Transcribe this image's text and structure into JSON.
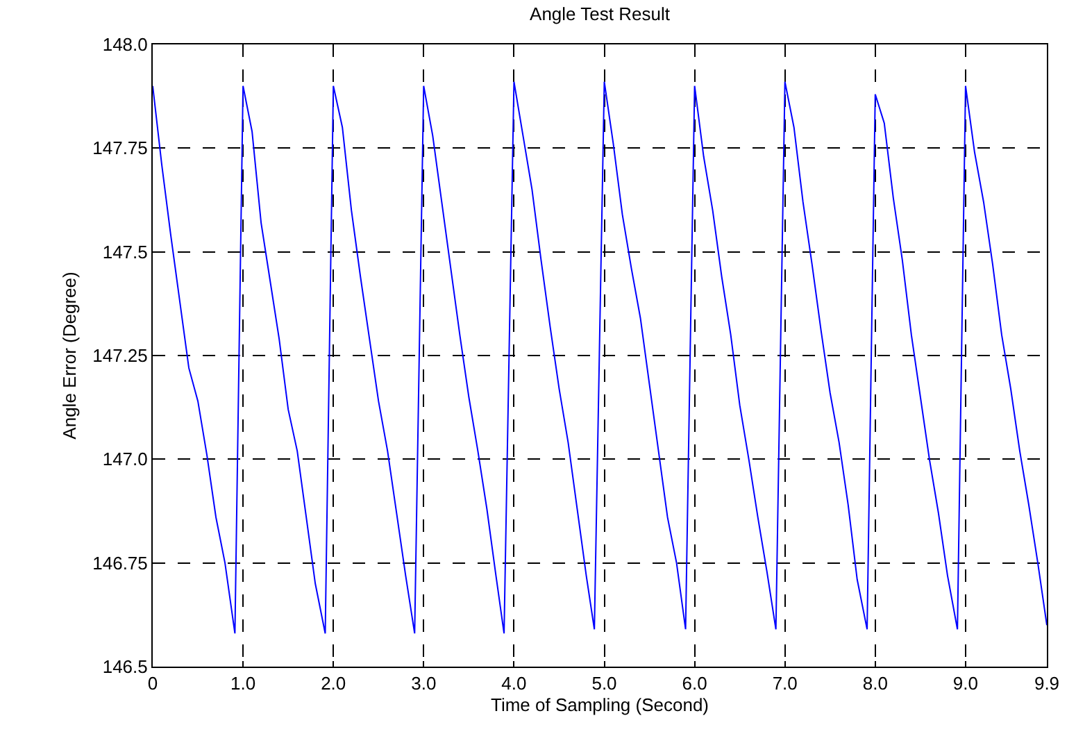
{
  "chart_data": {
    "type": "line",
    "title": "Angle Test Result",
    "xlabel": "Time of Sampling (Second)",
    "ylabel": "Angle Error (Degree)",
    "xlim": [
      0,
      9.9
    ],
    "xticks": [
      0,
      {
        "value": 1,
        "label": "1.0"
      },
      {
        "value": 2,
        "label": "2.0"
      },
      {
        "value": 3,
        "label": "3.0"
      },
      {
        "value": 4,
        "label": "4.0"
      },
      {
        "value": 5,
        "label": "5.0"
      },
      {
        "value": 6,
        "label": "6.0"
      },
      {
        "value": 7,
        "label": "7.0"
      },
      {
        "value": 8,
        "label": "8.0"
      },
      {
        "value": 9,
        "label": "9.0"
      },
      9.9
    ],
    "ylim": [
      146.5,
      148.0
    ],
    "yticks": [
      {
        "value": 146.5,
        "label": "146.5"
      },
      146.75,
      {
        "value": 147,
        "label": "147.0"
      },
      147.25,
      {
        "value": 147.5,
        "label": "147.5"
      },
      147.75,
      {
        "value": 148,
        "label": "148.0"
      }
    ],
    "grid": true,
    "line_style": "solid",
    "marker": "none",
    "x": [
      0,
      0.1,
      0.2,
      0.3,
      0.4,
      0.5,
      0.6,
      0.7,
      0.8,
      0.91,
      1.0,
      1.1,
      1.2,
      1.3,
      1.4,
      1.5,
      1.6,
      1.7,
      1.8,
      1.91,
      2.0,
      2.1,
      2.2,
      2.3,
      2.4,
      2.5,
      2.6,
      2.7,
      2.8,
      2.9,
      3.0,
      3.1,
      3.2,
      3.3,
      3.4,
      3.5,
      3.6,
      3.7,
      3.8,
      3.89,
      4.0,
      4.1,
      4.2,
      4.3,
      4.4,
      4.5,
      4.6,
      4.7,
      4.8,
      4.89,
      5.0,
      5.1,
      5.2,
      5.3,
      5.4,
      5.5,
      5.6,
      5.7,
      5.8,
      5.9,
      6.0,
      6.1,
      6.2,
      6.3,
      6.4,
      6.5,
      6.6,
      6.7,
      6.8,
      6.9,
      7.0,
      7.1,
      7.2,
      7.3,
      7.4,
      7.5,
      7.6,
      7.7,
      7.8,
      7.91,
      8.0,
      8.1,
      8.2,
      8.3,
      8.4,
      8.5,
      8.6,
      8.7,
      8.8,
      8.91,
      9.0,
      9.1,
      9.2,
      9.3,
      9.4,
      9.5,
      9.6,
      9.7,
      9.8,
      9.9
    ],
    "series": [
      {
        "color": "#0000ff",
        "values": [
          147.9,
          147.71,
          147.54,
          147.38,
          147.22,
          147.14,
          147.01,
          146.86,
          146.75,
          146.58,
          147.9,
          147.79,
          147.57,
          147.43,
          147.29,
          147.12,
          147.02,
          146.86,
          146.7,
          146.58,
          147.9,
          147.8,
          147.6,
          147.44,
          147.29,
          147.14,
          147.02,
          146.87,
          146.72,
          146.58,
          147.9,
          147.78,
          147.62,
          147.46,
          147.3,
          147.15,
          147.02,
          146.88,
          146.72,
          146.58,
          147.91,
          147.78,
          147.65,
          147.48,
          147.32,
          147.17,
          147.04,
          146.88,
          146.72,
          146.59,
          147.91,
          147.76,
          147.59,
          147.46,
          147.34,
          147.18,
          147.02,
          146.86,
          146.75,
          146.59,
          147.9,
          147.73,
          147.6,
          147.44,
          147.3,
          147.13,
          147.0,
          146.86,
          146.73,
          146.59,
          147.91,
          147.8,
          147.62,
          147.47,
          147.31,
          147.16,
          147.04,
          146.89,
          146.71,
          146.59,
          147.88,
          147.81,
          147.63,
          147.48,
          147.3,
          147.15,
          147.0,
          146.87,
          146.72,
          146.59,
          147.9,
          147.74,
          147.62,
          147.47,
          147.3,
          147.17,
          147.02,
          146.89,
          146.75,
          146.6
        ]
      }
    ]
  }
}
